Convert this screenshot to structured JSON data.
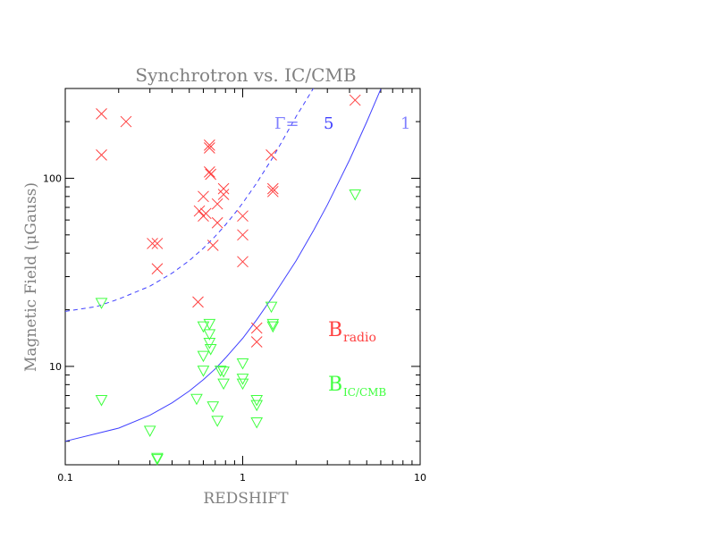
{
  "chart_data": {
    "type": "scatter",
    "title": "Synchrotron vs. IC/CMB",
    "xlabel": "REDSHIFT",
    "ylabel": "Magnetic Field (μGauss)",
    "xscale": "log",
    "yscale": "log",
    "xlim": [
      0.1,
      10
    ],
    "ylim": [
      3.0,
      300
    ],
    "x_ticks": [
      {
        "value": 0.1,
        "label": "0.1"
      },
      {
        "value": 1,
        "label": "1"
      },
      {
        "value": 10,
        "label": "10"
      }
    ],
    "y_ticks": [
      {
        "value": 10,
        "label": "10"
      },
      {
        "value": 100,
        "label": "100"
      }
    ],
    "grid": false,
    "series": [
      {
        "label_main": "B",
        "label_sub": "radio",
        "marker": "x",
        "color": "#ff4040",
        "points": [
          [
            0.16,
            220
          ],
          [
            0.22,
            200
          ],
          [
            0.16,
            133
          ],
          [
            0.31,
            45
          ],
          [
            0.33,
            45
          ],
          [
            0.33,
            33
          ],
          [
            0.56,
            22
          ],
          [
            0.57,
            67
          ],
          [
            0.6,
            63
          ],
          [
            0.6,
            80
          ],
          [
            0.62,
            65
          ],
          [
            0.65,
            150
          ],
          [
            0.65,
            145
          ],
          [
            0.65,
            108
          ],
          [
            0.66,
            105
          ],
          [
            0.68,
            44
          ],
          [
            0.72,
            58
          ],
          [
            0.72,
            73
          ],
          [
            0.78,
            88
          ],
          [
            0.78,
            82
          ],
          [
            1.0,
            63
          ],
          [
            1.0,
            50
          ],
          [
            1.0,
            36
          ],
          [
            1.2,
            16
          ],
          [
            1.2,
            13.5
          ],
          [
            1.45,
            133
          ],
          [
            1.48,
            88
          ],
          [
            1.48,
            85
          ],
          [
            4.3,
            260
          ]
        ]
      },
      {
        "label_main": "B",
        "label_sub": "IC/CMB",
        "marker": "triangle-down",
        "color": "#40ff40",
        "points": [
          [
            0.16,
            22
          ],
          [
            0.16,
            6.7
          ],
          [
            0.3,
            4.6
          ],
          [
            0.33,
            3.3
          ],
          [
            0.33,
            3.25
          ],
          [
            0.55,
            6.8
          ],
          [
            0.6,
            16.5
          ],
          [
            0.6,
            11.5
          ],
          [
            0.6,
            9.6
          ],
          [
            0.65,
            17
          ],
          [
            0.65,
            15
          ],
          [
            0.65,
            13.5
          ],
          [
            0.66,
            12.5
          ],
          [
            0.68,
            6.2
          ],
          [
            0.72,
            5.2
          ],
          [
            0.75,
            9.6
          ],
          [
            0.78,
            9.5
          ],
          [
            0.78,
            8.2
          ],
          [
            1.0,
            10.5
          ],
          [
            1.0,
            8.7
          ],
          [
            1.0,
            8.2
          ],
          [
            1.2,
            6.7
          ],
          [
            1.2,
            6.3
          ],
          [
            1.2,
            5.1
          ],
          [
            1.45,
            21
          ],
          [
            1.48,
            17
          ],
          [
            1.48,
            16.5
          ],
          [
            4.3,
            83
          ]
        ]
      }
    ],
    "curves": [
      {
        "gamma_label": "5",
        "style": "dashed",
        "color": "#4040ff",
        "points": [
          [
            0.1,
            19.6
          ],
          [
            0.15,
            20.8
          ],
          [
            0.2,
            22.8
          ],
          [
            0.3,
            26.7
          ],
          [
            0.4,
            31.3
          ],
          [
            0.5,
            36.5
          ],
          [
            0.6,
            42.5
          ],
          [
            0.7,
            49.2
          ],
          [
            0.8,
            56.6
          ],
          [
            0.9,
            64.8
          ],
          [
            1.0,
            73.8
          ],
          [
            1.2,
            94.4
          ],
          [
            1.5,
            132
          ],
          [
            2.0,
            213
          ],
          [
            2.5,
            300
          ]
        ]
      },
      {
        "gamma_label": "1",
        "style": "solid",
        "color": "#4040ff",
        "points": [
          [
            0.1,
            4.0
          ],
          [
            0.2,
            4.7
          ],
          [
            0.3,
            5.5
          ],
          [
            0.4,
            6.4
          ],
          [
            0.5,
            7.4
          ],
          [
            0.6,
            8.5
          ],
          [
            0.7,
            9.7
          ],
          [
            0.8,
            11.1
          ],
          [
            1.0,
            14.1
          ],
          [
            1.2,
            17.7
          ],
          [
            1.5,
            24.0
          ],
          [
            2.0,
            36.5
          ],
          [
            2.5,
            52.5
          ],
          [
            3.0,
            72.2
          ],
          [
            4.0,
            125
          ],
          [
            5.0,
            199
          ],
          [
            6.0,
            298
          ]
        ]
      }
    ],
    "gamma_prefix": "Γ="
  }
}
